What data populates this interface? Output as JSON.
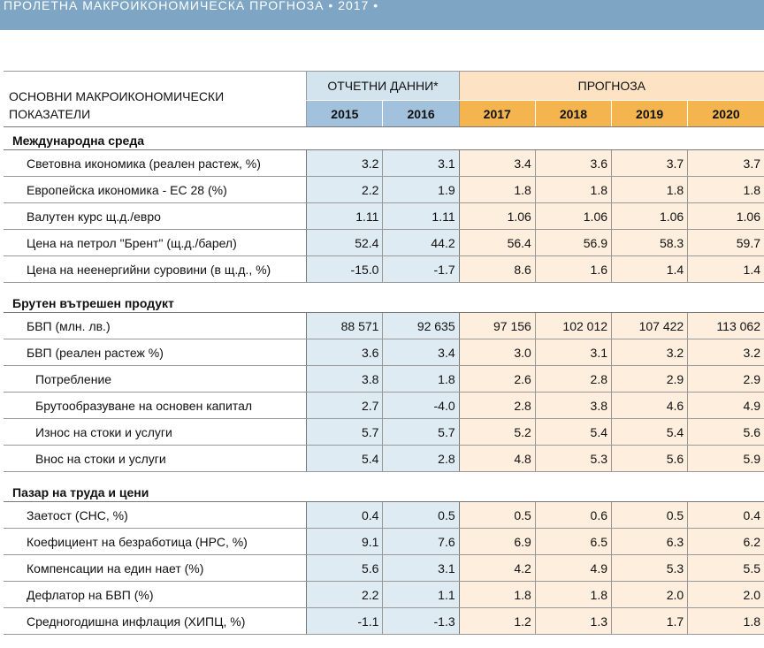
{
  "header": {
    "title": "ПРОЛЕТНА МАКРОИКОНОМИЧЕСКА ПРОГНОЗА  • 2017 •"
  },
  "table": {
    "corner_label": "ОСНОВНИ МАКРОИКОНОМИЧЕСКИ ПОКАЗАТЕЛИ",
    "reported_group": "ОТЧЕТНИ ДАННИ*",
    "forecast_group": "ПРОГНОЗА",
    "years": [
      "2015",
      "2016",
      "2017",
      "2018",
      "2019",
      "2020"
    ],
    "sections": [
      {
        "title": "Международна среда",
        "rows": [
          {
            "label": "Световна икономика (реален растеж, %)",
            "values": [
              "3.2",
              "3.1",
              "3.4",
              "3.6",
              "3.7",
              "3.7"
            ]
          },
          {
            "label": "Европейска икономика - ЕС 28 (%)",
            "values": [
              "2.2",
              "1.9",
              "1.8",
              "1.8",
              "1.8",
              "1.8"
            ]
          },
          {
            "label": "Валутен курс щ.д./евро",
            "values": [
              "1.11",
              "1.11",
              "1.06",
              "1.06",
              "1.06",
              "1.06"
            ]
          },
          {
            "label": "Цена на петрол \"Брент\" (щ.д./барел)",
            "values": [
              "52.4",
              "44.2",
              "56.4",
              "56.9",
              "58.3",
              "59.7"
            ]
          },
          {
            "label": "Цена на неенергийни суровини (в щ.д., %)",
            "values": [
              "-15.0",
              "-1.7",
              "8.6",
              "1.6",
              "1.4",
              "1.4"
            ]
          }
        ]
      },
      {
        "title": "Брутен вътрешен продукт",
        "rows": [
          {
            "label": "БВП (млн. лв.)",
            "values": [
              "88 571",
              "92 635",
              "97 156",
              "102 012",
              "107 422",
              "113 062"
            ]
          },
          {
            "label": "БВП (реален растеж %)",
            "values": [
              "3.6",
              "3.4",
              "3.0",
              "3.1",
              "3.2",
              "3.2"
            ]
          },
          {
            "label": "Потребление",
            "values": [
              "3.8",
              "1.8",
              "2.6",
              "2.8",
              "2.9",
              "2.9"
            ]
          },
          {
            "label": "Брутообразуване на основен капитал",
            "values": [
              "2.7",
              "-4.0",
              "2.8",
              "3.8",
              "4.6",
              "4.9"
            ]
          },
          {
            "label": "Износ на стоки и услуги",
            "values": [
              "5.7",
              "5.7",
              "5.2",
              "5.4",
              "5.4",
              "5.6"
            ]
          },
          {
            "label": "Внос на стоки и услуги",
            "values": [
              "5.4",
              "2.8",
              "4.8",
              "5.3",
              "5.6",
              "5.9"
            ]
          }
        ]
      },
      {
        "title": "Пазар на труда и цени",
        "rows": [
          {
            "label": "Заетост (СНС, %)",
            "values": [
              "0.4",
              "0.5",
              "0.5",
              "0.6",
              "0.5",
              "0.4"
            ]
          },
          {
            "label": "Коефициент на безработица (НРС, %)",
            "values": [
              "9.1",
              "7.6",
              "6.9",
              "6.5",
              "6.3",
              "6.2"
            ]
          },
          {
            "label": "Компенсации на един нает (%)",
            "values": [
              "5.6",
              "3.1",
              "4.2",
              "4.9",
              "5.3",
              "5.5"
            ]
          },
          {
            "label": "Дефлатор на БВП (%)",
            "values": [
              "2.2",
              "1.1",
              "1.8",
              "1.8",
              "2.0",
              "2.0"
            ]
          },
          {
            "label": "Средногодишна инфлация (ХИПЦ, %)",
            "values": [
              "-1.1",
              "-1.3",
              "1.2",
              "1.3",
              "1.7",
              "1.8"
            ]
          }
        ]
      }
    ]
  },
  "colors": {
    "banner": "#7ea6c4",
    "reported_header": "#a2c1dc",
    "reported_cell": "#deebf3",
    "forecast_header": "#f4b54e",
    "forecast_cell": "#feeedd"
  }
}
